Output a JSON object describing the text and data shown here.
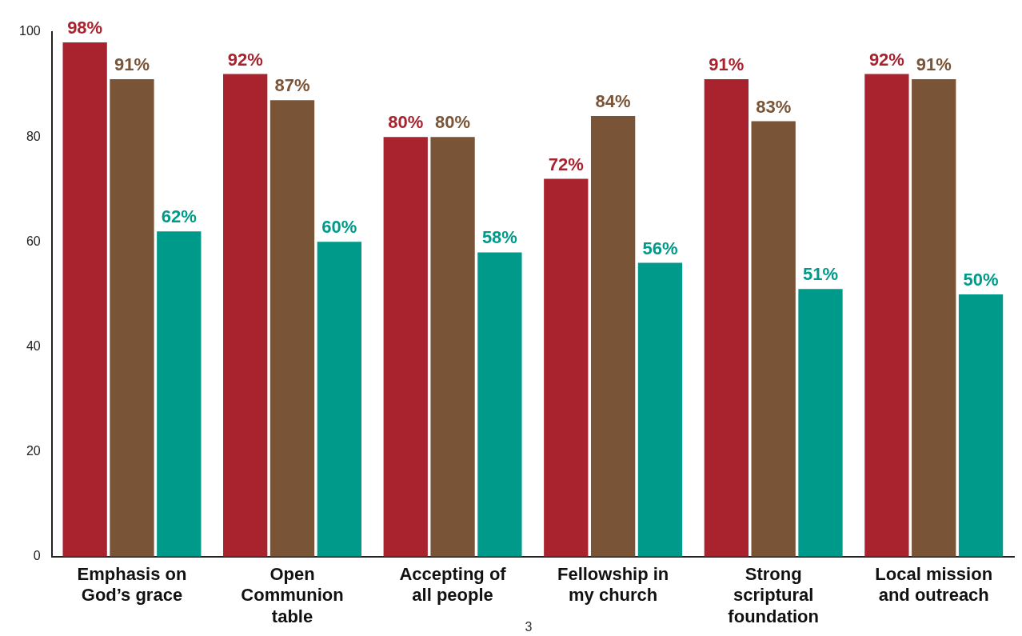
{
  "chart_data": {
    "type": "bar",
    "categories": [
      "Emphasis on God’s grace",
      "Open Communion table",
      "Accepting of all people",
      "Fellowship in my church",
      "Strong scriptural foundation",
      "Local mission and outreach"
    ],
    "series": [
      {
        "color": "#a8232e",
        "values": [
          98,
          92,
          80,
          72,
          91,
          92
        ],
        "value_labels": [
          "98%",
          "92%",
          "80%",
          "72%",
          "91%",
          "92%"
        ]
      },
      {
        "color": "#7a5437",
        "values": [
          91,
          87,
          80,
          84,
          83,
          91
        ],
        "value_labels": [
          "91%",
          "87%",
          "80%",
          "84%",
          "83%",
          "91%"
        ]
      },
      {
        "color": "#009a8a",
        "values": [
          62,
          60,
          58,
          56,
          51,
          50
        ],
        "value_labels": [
          "62%",
          "60%",
          "58%",
          "56%",
          "51%",
          "50%"
        ]
      }
    ],
    "ylim": [
      0,
      100
    ],
    "yticks": [
      0,
      20,
      40,
      60,
      80,
      100
    ],
    "grid": false,
    "legend": false,
    "annotations": [
      "3"
    ]
  }
}
